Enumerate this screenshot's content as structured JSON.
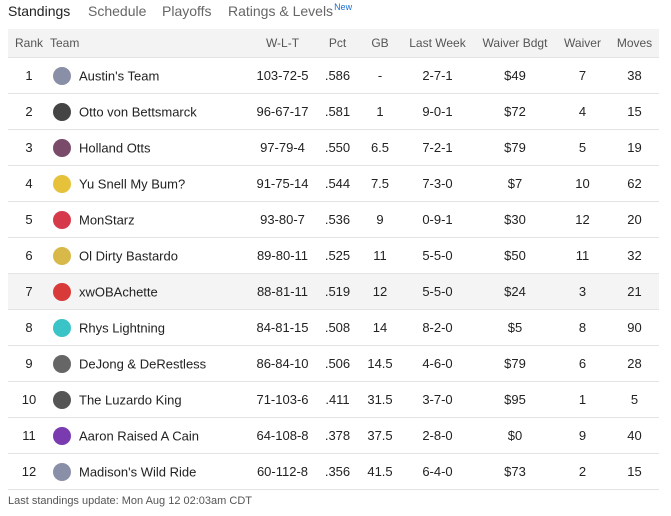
{
  "tabs": [
    "Standings",
    "Schedule",
    "Playoffs",
    "Ratings & Levels"
  ],
  "tab_badge": "New",
  "table": {
    "header": [
      "Rank",
      "Team",
      "W-L-T",
      "Pct",
      "GB",
      "Last Week",
      "Waiver Bdgt",
      "Waiver",
      "Moves"
    ],
    "rows": [
      [
        "1",
        "Austin's Team",
        "103-72-5",
        ".586",
        "-",
        "2-7-1",
        "$49",
        "7",
        "38"
      ],
      [
        "2",
        "Otto von Bettsmarck",
        "96-67-17",
        ".581",
        "1",
        "9-0-1",
        "$72",
        "4",
        "15"
      ],
      [
        "3",
        "Holland Otts",
        "97-79-4",
        ".550",
        "6.5",
        "7-2-1",
        "$79",
        "5",
        "19"
      ],
      [
        "4",
        "Yu Snell My Bum?",
        "91-75-14",
        ".544",
        "7.5",
        "7-3-0",
        "$7",
        "10",
        "62"
      ],
      [
        "5",
        "MonStarz",
        "93-80-7",
        ".536",
        "9",
        "0-9-1",
        "$30",
        "12",
        "20"
      ],
      [
        "6",
        "Ol Dirty Bastardo",
        "89-80-11",
        ".525",
        "11",
        "5-5-0",
        "$50",
        "11",
        "32"
      ],
      [
        "7",
        "xwOBAchette",
        "88-81-11",
        ".519",
        "12",
        "5-5-0",
        "$24",
        "3",
        "21"
      ],
      [
        "8",
        "Rhys Lightning",
        "84-81-15",
        ".508",
        "14",
        "8-2-0",
        "$5",
        "8",
        "90"
      ],
      [
        "9",
        "DeJong & DeRestless",
        "86-84-10",
        ".506",
        "14.5",
        "4-6-0",
        "$79",
        "6",
        "28"
      ],
      [
        "10",
        "The Luzardo King",
        "71-103-6",
        ".411",
        "31.5",
        "3-7-0",
        "$95",
        "1",
        "5"
      ],
      [
        "11",
        "Aaron Raised A Cain",
        "64-108-8",
        ".378",
        "37.5",
        "2-8-0",
        "$0",
        "9",
        "40"
      ],
      [
        "12",
        "Madison's Wild Ride",
        "60-112-8",
        ".356",
        "41.5",
        "6-4-0",
        "$73",
        "2",
        "15"
      ]
    ]
  },
  "footer": "Last standings update: Mon Aug 12 02:03am CDT"
}
